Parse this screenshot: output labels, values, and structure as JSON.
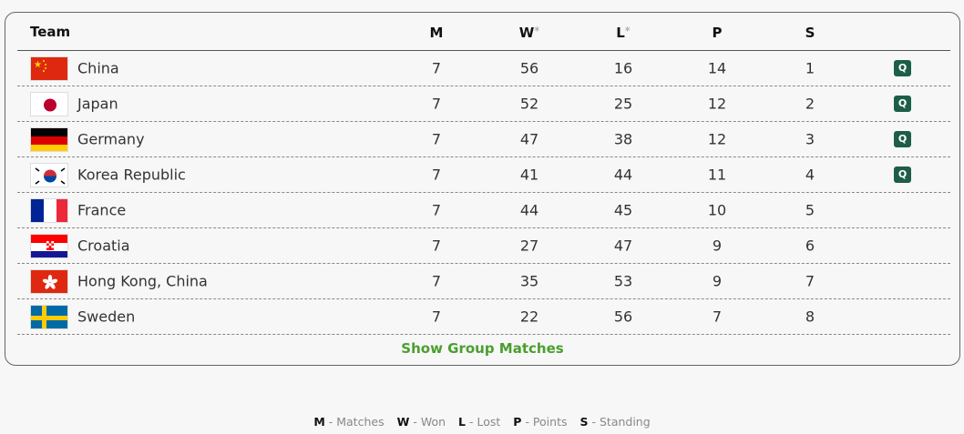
{
  "header": {
    "team": "Team",
    "m": "M",
    "w": "W",
    "l": "L",
    "p": "P",
    "s": "S",
    "asterisk": "*"
  },
  "rows": [
    {
      "team": "China",
      "flag": "china-flag",
      "m": "7",
      "w": "56",
      "l": "16",
      "p": "14",
      "s": "1",
      "q": "Q"
    },
    {
      "team": "Japan",
      "flag": "japan-flag",
      "m": "7",
      "w": "52",
      "l": "25",
      "p": "12",
      "s": "2",
      "q": "Q"
    },
    {
      "team": "Germany",
      "flag": "germany-flag",
      "m": "7",
      "w": "47",
      "l": "38",
      "p": "12",
      "s": "3",
      "q": "Q"
    },
    {
      "team": "Korea Republic",
      "flag": "korea-flag",
      "m": "7",
      "w": "41",
      "l": "44",
      "p": "11",
      "s": "4",
      "q": "Q"
    },
    {
      "team": "France",
      "flag": "france-flag",
      "m": "7",
      "w": "44",
      "l": "45",
      "p": "10",
      "s": "5",
      "q": ""
    },
    {
      "team": "Croatia",
      "flag": "croatia-flag",
      "m": "7",
      "w": "27",
      "l": "47",
      "p": "9",
      "s": "6",
      "q": ""
    },
    {
      "team": "Hong Kong, China",
      "flag": "hongkong-flag",
      "m": "7",
      "w": "35",
      "l": "53",
      "p": "9",
      "s": "7",
      "q": ""
    },
    {
      "team": "Sweden",
      "flag": "sweden-flag",
      "m": "7",
      "w": "22",
      "l": "56",
      "p": "7",
      "s": "8",
      "q": ""
    }
  ],
  "show_matches": "Show Group Matches",
  "legend": [
    {
      "k": "M",
      "v": "- Matches"
    },
    {
      "k": "W",
      "v": "- Won"
    },
    {
      "k": "L",
      "v": "- Lost"
    },
    {
      "k": "P",
      "v": "- Points"
    },
    {
      "k": "S",
      "v": "- Standing"
    }
  ],
  "colors": {
    "qualified": "#1d5e48",
    "link": "#4a9e2e"
  }
}
